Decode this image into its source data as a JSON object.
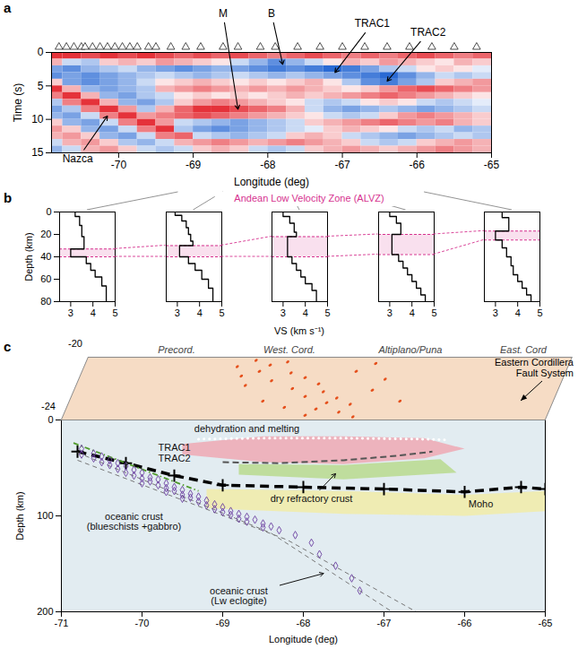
{
  "chart_data": [
    {
      "type": "wiggle",
      "panel": "a",
      "xlabel": "Longitude (deg)",
      "ylabel": "Time (s)",
      "xlim": [
        -70.9,
        -65
      ],
      "xticks": [
        -70,
        -69,
        -68,
        -67,
        -66,
        -65
      ],
      "ylim": [
        0,
        15
      ],
      "yticks": [
        0,
        5,
        10,
        15
      ],
      "marker": "triangle",
      "stations": [
        -70.8,
        -70.7,
        -70.6,
        -70.5,
        -70.45,
        -70.35,
        -70.25,
        -70.15,
        -70.05,
        -69.95,
        -69.85,
        -69.75,
        -69.6,
        -69.5,
        -69.3,
        -69.1,
        -68.9,
        -68.6,
        -68.4,
        -68.1,
        -67.9,
        -67.6,
        -67.3,
        -67.0,
        -66.7,
        -66.4,
        -66.1,
        -65.8,
        -65.5,
        -65.2
      ],
      "lon": [
        -70.875,
        -70.625,
        -70.375,
        -70.125,
        -69.875,
        -69.625,
        -69.375,
        -69.125,
        -68.875,
        -68.625,
        -68.375,
        -68.125,
        -67.875,
        -67.625,
        -67.375,
        -67.125,
        -66.875,
        -66.625,
        -66.375,
        -66.125,
        -65.875,
        -65.625,
        -65.375,
        -65.125
      ],
      "time": [
        0.5,
        1.5,
        2.5,
        3.5,
        4.5,
        5.5,
        6.5,
        7.5,
        8.5,
        9.5,
        10.5,
        11.5,
        12.5,
        13.5,
        14.5
      ],
      "amplitude": [
        [
          0.8,
          0.8,
          0.7,
          0.8,
          0.7,
          0.8,
          0.7,
          0.6,
          0.7,
          0.6,
          0.7,
          0.6,
          0.5,
          0.6,
          0.7,
          0.6,
          0.5,
          0.6,
          0.5,
          0.6,
          0.7,
          0.6,
          0.5,
          0.6
        ],
        [
          0.3,
          -0.2,
          -0.3,
          0.2,
          0.3,
          0.2,
          0.4,
          0.3,
          0.2,
          0.1,
          -0.2,
          -0.4,
          -0.6,
          -0.4,
          -0.2,
          0.1,
          0.3,
          0.2,
          0.4,
          0.3,
          0.2,
          0.1,
          0.3,
          0.2
        ],
        [
          -0.5,
          -0.6,
          -0.4,
          -0.3,
          -0.2,
          -0.4,
          -0.5,
          -0.6,
          -0.5,
          -0.4,
          -0.5,
          -0.6,
          -0.7,
          -0.6,
          -0.7,
          -0.8,
          -0.7,
          -0.5,
          -0.3,
          -0.2,
          0.1,
          0.2,
          0.1,
          -0.1
        ],
        [
          -0.6,
          -0.5,
          -0.6,
          -0.5,
          -0.4,
          -0.3,
          -0.2,
          -0.3,
          -0.4,
          -0.3,
          -0.2,
          -0.3,
          -0.4,
          -0.3,
          -0.4,
          -0.5,
          -0.6,
          -0.7,
          -0.8,
          -0.6,
          -0.4,
          -0.2,
          -0.3,
          -0.2
        ],
        [
          0.2,
          -0.5,
          -0.6,
          -0.5,
          -0.4,
          -0.2,
          0.1,
          0.2,
          0.3,
          0.2,
          0.1,
          0.2,
          0.1,
          0.2,
          0.3,
          0.1,
          -0.3,
          -0.6,
          -0.7,
          -0.5,
          -0.3,
          0.2,
          0.3,
          0.4
        ],
        [
          0.8,
          0.3,
          -0.4,
          -0.5,
          -0.4,
          -0.3,
          0.3,
          0.4,
          0.5,
          0.4,
          0.3,
          0.4,
          0.3,
          0.4,
          0.3,
          0.2,
          0.1,
          0.2,
          0.4,
          0.6,
          0.7,
          0.6,
          0.5,
          0.4
        ],
        [
          0.5,
          0.8,
          0.3,
          -0.4,
          -0.5,
          -0.3,
          -0.2,
          0.1,
          0.2,
          0.1,
          0.2,
          0.1,
          0.2,
          0.3,
          0.2,
          0.3,
          0.4,
          0.5,
          0.6,
          0.5,
          0.4,
          0.3,
          0.2,
          0.1
        ],
        [
          -0.3,
          0.5,
          0.8,
          0.3,
          -0.4,
          -0.5,
          -0.3,
          0.2,
          0.4,
          0.5,
          0.4,
          0.3,
          0.2,
          0.1,
          -0.2,
          -0.3,
          -0.2,
          0.1,
          0.2,
          0.1,
          -0.2,
          -0.3,
          -0.2,
          -0.1
        ],
        [
          -0.5,
          -0.3,
          0.5,
          0.8,
          0.4,
          -0.3,
          0.3,
          0.6,
          0.8,
          0.8,
          0.7,
          0.6,
          0.5,
          0.3,
          -0.2,
          -0.4,
          -0.5,
          -0.4,
          -0.3,
          -0.4,
          -0.5,
          -0.4,
          -0.3,
          -0.2
        ],
        [
          -0.4,
          -0.5,
          -0.2,
          0.5,
          0.8,
          0.4,
          0.5,
          0.6,
          0.7,
          0.6,
          0.5,
          0.4,
          0.3,
          0.2,
          0.1,
          -0.2,
          -0.3,
          -0.2,
          0.2,
          0.4,
          0.5,
          0.4,
          0.3,
          0.2
        ],
        [
          0.2,
          -0.4,
          -0.5,
          -0.2,
          0.5,
          0.8,
          0.4,
          -0.2,
          -0.3,
          -0.4,
          -0.5,
          -0.4,
          -0.3,
          -0.2,
          0.2,
          0.3,
          0.4,
          0.5,
          0.6,
          0.5,
          0.4,
          0.5,
          0.3,
          0.2
        ],
        [
          0.4,
          0.2,
          -0.4,
          -0.5,
          -0.2,
          0.5,
          0.8,
          -0.3,
          -0.5,
          -0.6,
          -0.5,
          -0.4,
          -0.3,
          -0.2,
          -0.1,
          0.2,
          0.3,
          0.2,
          0.1,
          -0.2,
          -0.3,
          -0.2,
          -0.4,
          -0.3
        ],
        [
          0.3,
          0.4,
          0.2,
          -0.4,
          -0.5,
          -0.2,
          0.5,
          0.6,
          -0.2,
          -0.3,
          -0.4,
          -0.3,
          -0.2,
          0.2,
          0.3,
          0.2,
          -0.2,
          -0.3,
          -0.4,
          -0.5,
          -0.4,
          -0.3,
          -0.2,
          -0.3
        ],
        [
          -0.2,
          0.3,
          0.4,
          0.2,
          -0.3,
          -0.4,
          -0.2,
          0.3,
          0.4,
          0.5,
          0.4,
          0.3,
          0.4,
          0.5,
          0.4,
          0.3,
          0.2,
          -0.2,
          -0.3,
          -0.2,
          0.2,
          0.3,
          0.4,
          0.3
        ],
        [
          -0.4,
          -0.2,
          0.3,
          0.4,
          0.2,
          -0.2,
          -0.3,
          -0.2,
          0.2,
          0.3,
          0.2,
          -0.2,
          -0.3,
          -0.2,
          0.2,
          0.3,
          0.4,
          0.3,
          0.2,
          0.3,
          0.4,
          0.5,
          0.4,
          0.3
        ]
      ],
      "annotations": [
        {
          "text": "M",
          "x": -68.6,
          "y": -5.8,
          "arrow_to": [
            -68.4,
            8.5
          ]
        },
        {
          "text": "B",
          "x": -67.95,
          "y": -5.8,
          "arrow_to": [
            -67.8,
            1.8
          ]
        },
        {
          "text": "TRAC1",
          "x": -66.6,
          "y": -4.3,
          "arrow_to": [
            -67.1,
            3
          ]
        },
        {
          "text": "TRAC2",
          "x": -65.85,
          "y": -3,
          "arrow_to": [
            -66.4,
            4.3
          ]
        },
        {
          "text": "Nazca",
          "x": -70.55,
          "y": 15.9,
          "arrow_to": [
            -70.15,
            9.5
          ]
        }
      ]
    },
    {
      "type": "step",
      "panel": "b",
      "xlabel": "VS (km s⁻¹)",
      "ylabel": "Depth (km)",
      "xlim": [
        2.5,
        5
      ],
      "xticks": [
        3,
        4,
        5
      ],
      "ylim": [
        0,
        80
      ],
      "yticks": [
        0,
        20,
        40,
        60,
        80
      ],
      "color": "#000000",
      "zone": {
        "label": "Andean Low Velocity Zone (ALVZ)",
        "color": "#d6328f"
      },
      "profiles": [
        {
          "longitude": -69.2,
          "depth": [
            0,
            4,
            12,
            22,
            33,
            40,
            46,
            52,
            58,
            66,
            80
          ],
          "vs": [
            3.2,
            3.4,
            3.5,
            3.6,
            3.0,
            3.7,
            3.9,
            4.1,
            4.4,
            4.6
          ],
          "alvz": [
            33,
            40
          ]
        },
        {
          "longitude": -68.6,
          "depth": [
            0,
            3,
            8,
            14,
            20,
            26,
            30,
            40,
            46,
            52,
            60,
            68,
            80
          ],
          "vs": [
            2.9,
            3.2,
            3.4,
            3.5,
            3.6,
            3.7,
            3.1,
            3.5,
            3.8,
            4.1,
            4.4,
            4.6
          ],
          "alvz": [
            30,
            40
          ]
        },
        {
          "longitude": -67.7,
          "depth": [
            0,
            4,
            10,
            18,
            22,
            40,
            46,
            52,
            58,
            64,
            70,
            80
          ],
          "vs": [
            3.0,
            3.3,
            3.5,
            3.6,
            3.2,
            3.4,
            3.6,
            3.8,
            4.0,
            4.3,
            4.5
          ],
          "alvz": [
            22,
            40
          ]
        },
        {
          "longitude": -67.0,
          "depth": [
            0,
            4,
            10,
            20,
            38,
            44,
            50,
            56,
            62,
            68,
            74,
            80
          ],
          "vs": [
            3.0,
            3.3,
            3.5,
            3.1,
            3.4,
            3.6,
            3.8,
            4.0,
            4.2,
            4.4,
            4.6
          ],
          "alvz": [
            20,
            38
          ]
        },
        {
          "longitude": -65.9,
          "depth": [
            0,
            5,
            17,
            25,
            32,
            40,
            48,
            56,
            62,
            68,
            74,
            80
          ],
          "vs": [
            3.3,
            3.6,
            3.0,
            3.3,
            3.5,
            3.7,
            3.8,
            4.0,
            4.2,
            4.4,
            4.6
          ],
          "alvz": [
            17,
            25
          ]
        }
      ]
    },
    {
      "type": "cross_section",
      "panel": "c",
      "xlabel": "Longitude (deg)",
      "ylabel": "Depth (km)",
      "xlim": [
        -71,
        -65
      ],
      "xticks": [
        -71,
        -70,
        -69,
        -68,
        -67,
        -66,
        -65
      ],
      "ylim": [
        0,
        200
      ],
      "yticks": [
        0,
        100,
        200
      ],
      "surface": {
        "ylim": [
          -24,
          -20
        ],
        "yticks": [
          -24,
          -20
        ],
        "regions": [
          {
            "text": "Precord.",
            "x": -69.9
          },
          {
            "text": "West. Cord.",
            "x": -68.5
          },
          {
            "text": "Altiplano/Puna",
            "x": -67.0
          },
          {
            "text": "East. Cord",
            "x": -65.6
          }
        ],
        "volcanoes": {
          "color": "#e5501c",
          "x": [
            -68.9,
            -68.7,
            -68.5,
            -68.8,
            -68.4,
            -68.2,
            -68.6,
            -68.0,
            -68.3,
            -67.9,
            -68.1,
            -67.7,
            -67.8,
            -67.5,
            -67.9,
            -67.6,
            -68.0,
            -67.4,
            -68.6,
            -68.9,
            -69.1,
            -67.3,
            -67.2,
            -66.9,
            -68.3,
            -67.6,
            -69.0,
            -67.4
          ],
          "y": [
            -20.2,
            -20.5,
            -20.3,
            -20.9,
            -21.0,
            -21.3,
            -21.5,
            -21.7,
            -22.0,
            -22.2,
            -22.5,
            -22.6,
            -22.9,
            -23.0,
            -23.3,
            -23.5,
            -23.7,
            -23.8,
            -22.8,
            -21.8,
            -20.6,
            -22.1,
            -21.4,
            -22.8,
            -23.2,
            -20.9,
            -21.2,
            -20.4
          ]
        },
        "fault_label": {
          "text": "Eastern Cordillera Fault System",
          "x": -65.4,
          "y": -22.8
        }
      },
      "zones": [
        {
          "x": [
            -69.5,
            -68.5,
            -67.5,
            -66.5,
            -66,
            -66.5,
            -67.5,
            -68.5,
            -69.5
          ],
          "y": [
            25,
            17,
            17,
            19,
            30,
            40,
            46,
            44,
            36
          ],
          "color": "#eea9b4"
        },
        {
          "x": [
            -68.8,
            -67.5,
            -66.3,
            -66.1,
            -67.5,
            -68.8
          ],
          "y": [
            46,
            47,
            41,
            55,
            62,
            57
          ],
          "color": "#b8da8e"
        },
        {
          "x": [
            -69.2,
            -67.5,
            -66,
            -65,
            -65,
            -66,
            -67.5,
            -69.2
          ],
          "y": [
            72,
            74,
            78,
            74,
            95,
            100,
            98,
            92
          ],
          "color": "#f1eca8"
        }
      ],
      "lines": [
        {
          "x": [
            -69.3,
            -68.5,
            -67.5,
            -66.5,
            -66.2
          ],
          "y": [
            20,
            19,
            19,
            20,
            21
          ],
          "color": "#ffffff",
          "line_style": "dotted"
        },
        {
          "x": [
            -69.0,
            -68.3,
            -67.5,
            -66.8,
            -66.4
          ],
          "y": [
            44,
            45,
            42,
            37,
            33
          ],
          "color": "#555555",
          "line_style": "dashed"
        },
        {
          "x": [
            -70.8,
            -70.2,
            -69.6,
            -69,
            -68,
            -67,
            -66,
            -65.3,
            -65
          ],
          "y": [
            33,
            45,
            58,
            68,
            70,
            72,
            75,
            70,
            72
          ],
          "color": "#000000",
          "line_style": "heavy_dashed",
          "marker": "plus"
        },
        {
          "x": [
            -70.85,
            -69.3
          ],
          "y": [
            24,
            74
          ],
          "color": "#4f9a2a",
          "line_style": "dash_dot"
        },
        {
          "x": [
            -70.8,
            -68.4,
            -66.9
          ],
          "y": [
            34,
            118,
            200
          ],
          "color": "#777777",
          "line_style": "fine_dashed"
        },
        {
          "x": [
            -70.8,
            -68.2,
            -66.6
          ],
          "y": [
            42,
            125,
            200
          ],
          "color": "#777777",
          "line_style": "fine_dashed"
        }
      ],
      "events": {
        "color": "#6b3fa0",
        "marker": "diamond",
        "x": [
          -70.75,
          -70.75,
          -70.6,
          -70.6,
          -70.5,
          -70.5,
          -70.4,
          -70.4,
          -70.3,
          -70.3,
          -70.2,
          -70.2,
          -70.1,
          -70.1,
          -70.0,
          -70.0,
          -70.0,
          -69.9,
          -69.9,
          -69.8,
          -69.8,
          -69.7,
          -69.7,
          -69.7,
          -69.6,
          -69.6,
          -69.5,
          -69.5,
          -69.5,
          -69.4,
          -69.4,
          -69.3,
          -69.3,
          -69.2,
          -69.2,
          -69.1,
          -69.1,
          -69.0,
          -69.0,
          -68.9,
          -68.9,
          -68.8,
          -68.8,
          -68.7,
          -68.7,
          -68.6,
          -68.5,
          -68.5,
          -68.4,
          -68.3,
          -68.1,
          -67.9,
          -67.8,
          -67.6,
          -67.4,
          -67.3
        ],
        "y": [
          30,
          36,
          35,
          40,
          38,
          44,
          42,
          47,
          45,
          51,
          48,
          55,
          52,
          58,
          55,
          61,
          66,
          60,
          64,
          62,
          68,
          66,
          71,
          75,
          70,
          74,
          73,
          78,
          82,
          77,
          81,
          80,
          85,
          84,
          89,
          88,
          93,
          91,
          96,
          95,
          99,
          98,
          103,
          101,
          106,
          104,
          108,
          112,
          111,
          115,
          120,
          128,
          140,
          152,
          165,
          178
        ]
      },
      "annotations": [
        {
          "text": "dehydration and melting",
          "x": -68.7,
          "y": 9
        },
        {
          "text": "TRAC1",
          "x": -69.6,
          "y": 29
        },
        {
          "text": "TRAC2",
          "x": -69.6,
          "y": 40
        },
        {
          "text": "dry refractory crust",
          "x": -67.9,
          "y": 82,
          "arrow_to": [
            -67.6,
            56
          ]
        },
        {
          "text": "Moho",
          "x": -65.8,
          "y": 88
        },
        {
          "text": "oceanic crust (blueschists +gabbro)",
          "x": -70.1,
          "y": 106
        },
        {
          "text": "oceanic crust (Lw eclogite)",
          "x": -68.8,
          "y": 184,
          "arrow_to": [
            -67.75,
            160
          ]
        }
      ]
    }
  ]
}
